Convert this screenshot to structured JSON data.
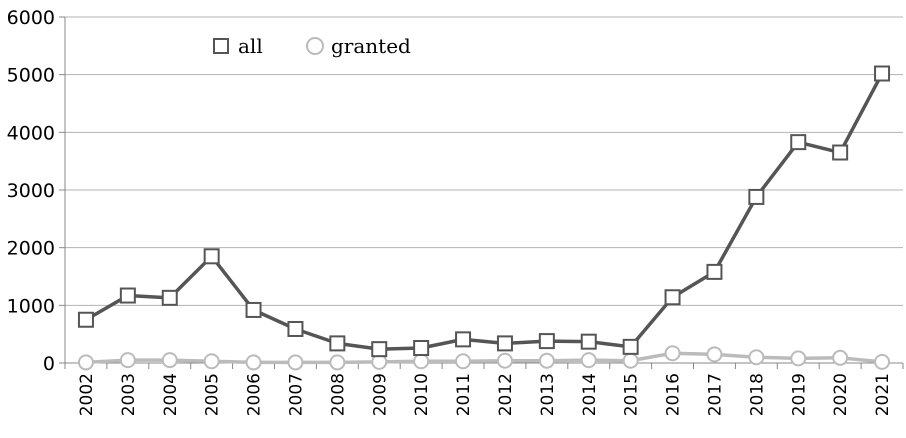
{
  "chart_data": {
    "type": "line",
    "title": "",
    "xlabel": "",
    "ylabel": "",
    "categories": [
      "2002",
      "2003",
      "2004",
      "2005",
      "2006",
      "2007",
      "2008",
      "2009",
      "2010",
      "2011",
      "2012",
      "2013",
      "2014",
      "2015",
      "2016",
      "2017",
      "2018",
      "2019",
      "2020",
      "2021"
    ],
    "ylim": [
      0,
      6000
    ],
    "y_ticks": [
      "0",
      "1000",
      "2000",
      "3000",
      "4000",
      "5000",
      "6000"
    ],
    "grid": true,
    "legend_position": "top-left",
    "series": [
      {
        "name": "all",
        "color": "#555555",
        "marker": "square",
        "values": [
          750,
          1170,
          1130,
          1850,
          920,
          590,
          340,
          240,
          260,
          410,
          340,
          380,
          370,
          280,
          1140,
          1580,
          2880,
          3830,
          3650,
          5020
        ]
      },
      {
        "name": "granted",
        "color": "#bbbbbb",
        "marker": "circle",
        "values": [
          10,
          50,
          50,
          30,
          10,
          10,
          10,
          20,
          30,
          30,
          40,
          40,
          50,
          40,
          170,
          150,
          100,
          80,
          90,
          20
        ]
      }
    ]
  }
}
